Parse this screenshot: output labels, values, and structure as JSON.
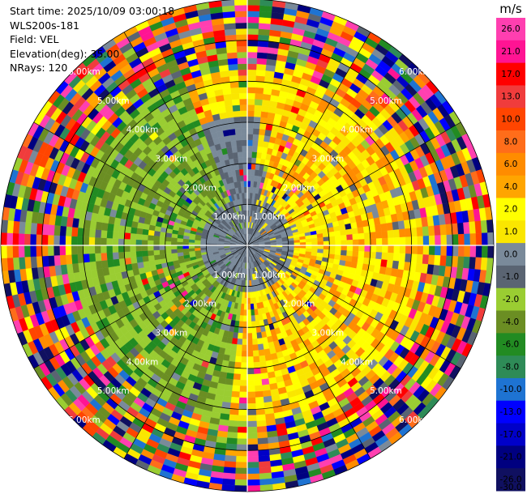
{
  "header": {
    "start_time": "Start time: 2025/10/09 03:00:18",
    "station": "WLS200s-181",
    "field": "Field: VEL",
    "elevation": "Elevation(deg): 35.00",
    "nrays": "NRays: 120"
  },
  "chart_data": {
    "type": "heatmap",
    "projection": "polar-ppi",
    "nrays": 120,
    "max_range_km": 6.0,
    "range_rings_km": [
      1.0,
      2.0,
      3.0,
      4.0,
      5.0,
      6.0
    ],
    "ring_labels": [
      "1.00km",
      "2.00km",
      "3.00km",
      "4.00km",
      "5.00km",
      "6.00km"
    ],
    "colorbar": {
      "unit": "m/s",
      "ticks": [
        "26.0",
        "21.0",
        "17.0",
        "13.0",
        "10.0",
        "8.0",
        "6.0",
        "4.0",
        "2.0",
        "1.0",
        "0.0",
        "-1.0",
        "-2.0",
        "-4.0",
        "-6.0",
        "-8.0",
        "-10.0",
        "-13.0",
        "-17.0",
        "-21.0",
        "-26.0",
        "-30.0"
      ],
      "colors": [
        "#ff3fb0",
        "#ff1493",
        "#ff0000",
        "#f03c3c",
        "#ff4500",
        "#ff6d1a",
        "#ff8c00",
        "#ffa500",
        "#ffff00",
        "#fae600",
        "#7a8a9a",
        "#5a6472",
        "#9acd32",
        "#6b8e23",
        "#228b22",
        "#2e8b57",
        "#1e73d2",
        "#0000ff",
        "#0000c8",
        "#000080",
        "#101060"
      ]
    },
    "pattern_notes": "near-field gray, yellow northeast/southeast lobes, green west/southwest lobes, noisy multicolor outer rings"
  }
}
